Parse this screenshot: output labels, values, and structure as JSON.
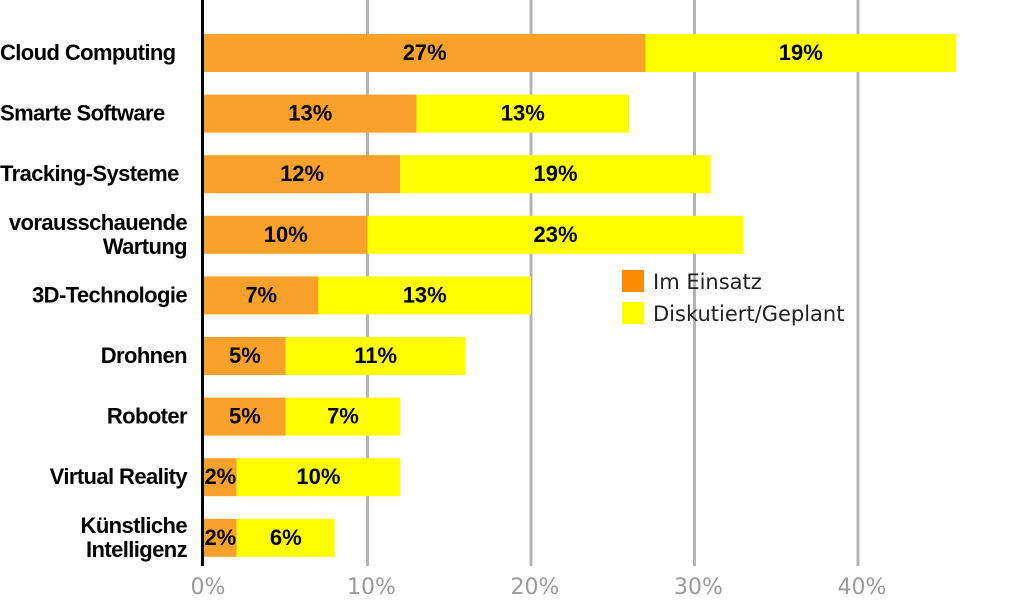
{
  "chart_data": {
    "type": "bar",
    "orientation": "horizontal",
    "stacked": true,
    "categories": [
      [
        "Cloud Computing"
      ],
      [
        "Smarte Software"
      ],
      [
        "Tracking-Systeme"
      ],
      [
        "vorausschauende",
        "Wartung"
      ],
      [
        "3D-Technologie"
      ],
      [
        "Drohnen"
      ],
      [
        "Roboter"
      ],
      [
        "Virtual Reality"
      ],
      [
        "Künstliche",
        "Intelligenz"
      ]
    ],
    "series": [
      {
        "name": "Im Einsatz",
        "color": "#f9a12b",
        "legend_color": "#ff8c00",
        "values": [
          27,
          13,
          12,
          10,
          7,
          5,
          5,
          2,
          2
        ],
        "labels": [
          "27%",
          "13%",
          "12%",
          "10%",
          "7%",
          "5%",
          "5%",
          "2%",
          "2%"
        ]
      },
      {
        "name": "Diskutiert/Geplant",
        "color": "#ffff00",
        "legend_color": "#ffff00",
        "values": [
          19,
          13,
          19,
          23,
          13,
          11,
          7,
          10,
          6
        ],
        "labels": [
          "19%",
          "13%",
          "19%",
          "23%",
          "13%",
          "11%",
          "7%",
          "10%",
          "6%"
        ]
      }
    ],
    "x_ticks": [
      0,
      10,
      20,
      30,
      40
    ],
    "x_tick_labels": [
      "0%",
      "10%",
      "20%",
      "30%",
      "40%"
    ],
    "xlim": [
      0,
      50
    ],
    "grid": true,
    "grid_color": "#b4b4b4",
    "legend_position": "right"
  }
}
